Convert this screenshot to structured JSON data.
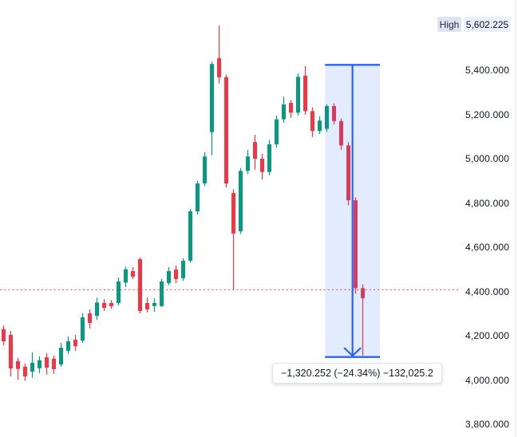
{
  "chart_data": {
    "type": "candlestick",
    "title": "",
    "high_badge": {
      "label": "High",
      "value": "5,602.225"
    },
    "measurement": {
      "display": "−1,320.252 (−24.34%) −132,025.2",
      "change": -1320.252,
      "change_pct": "-24.34%",
      "change_qty": -132025.2,
      "from_price": 5424.252,
      "to_price": 4104.0,
      "from_index": 44.75,
      "to_index": 52.4
    },
    "price_line": {
      "price": 4408,
      "style": "dotted"
    },
    "y_axis": {
      "side": "right",
      "grid": false,
      "ticks": [
        {
          "label": "5,400.000",
          "price": 5400
        },
        {
          "label": "5,200.000",
          "price": 5200
        },
        {
          "label": "5,000.000",
          "price": 5000
        },
        {
          "label": "4,800.000",
          "price": 4800
        },
        {
          "label": "4,600.000",
          "price": 4600
        },
        {
          "label": "4,400.000",
          "price": 4400
        },
        {
          "label": "4,200.000",
          "price": 4200
        },
        {
          "label": "4,000.000",
          "price": 4000
        },
        {
          "label": "3,800.000",
          "price": 3800
        }
      ]
    },
    "colors": {
      "up": "#089981",
      "down": "#f23645",
      "accent": "#2962ff",
      "price_line": "#f23645",
      "region_fill_opacity": 0.13,
      "text": "#131722"
    },
    "candles_ohlc": [
      [
        4230,
        4247,
        4157,
        4175
      ],
      [
        4204,
        4222,
        4016,
        4052
      ],
      [
        4085,
        4100,
        4000,
        4050
      ],
      [
        4060,
        4075,
        3996,
        4016
      ],
      [
        4038,
        4125,
        4010,
        4078
      ],
      [
        4053,
        4107,
        4031,
        4089
      ],
      [
        4103,
        4121,
        4024,
        4056
      ],
      [
        4096,
        4110,
        4028,
        4049
      ],
      [
        4070,
        4168,
        4060,
        4146
      ],
      [
        4132,
        4197,
        4118,
        4175
      ],
      [
        4182,
        4204,
        4132,
        4153
      ],
      [
        4178,
        4301,
        4168,
        4283
      ],
      [
        4301,
        4319,
        4232,
        4258
      ],
      [
        4290,
        4372,
        4272,
        4350
      ],
      [
        4348,
        4366,
        4312,
        4326
      ],
      [
        4348,
        4361,
        4322,
        4333
      ],
      [
        4348,
        4463,
        4337,
        4445
      ],
      [
        4440,
        4512,
        4420,
        4500
      ],
      [
        4492,
        4510,
        4456,
        4467
      ],
      [
        4546,
        4553,
        4301,
        4312
      ],
      [
        4348,
        4373,
        4305,
        4319
      ],
      [
        4334,
        4369,
        4308,
        4348
      ],
      [
        4334,
        4456,
        4330,
        4445
      ],
      [
        4438,
        4510,
        4427,
        4492
      ],
      [
        4499,
        4517,
        4438,
        4456
      ],
      [
        4460,
        4550,
        4448,
        4539
      ],
      [
        4539,
        4772,
        4530,
        4762
      ],
      [
        4762,
        4900,
        4748,
        4888
      ],
      [
        4888,
        5030,
        4876,
        5010
      ],
      [
        5120,
        5438,
        5015,
        5428
      ],
      [
        5454,
        5602.225,
        5340,
        5368
      ],
      [
        5368,
        5380,
        4870,
        4888
      ],
      [
        4845,
        4862,
        4408,
        4662
      ],
      [
        4672,
        4958,
        4660,
        4945
      ],
      [
        4945,
        5040,
        4930,
        5010
      ],
      [
        5075,
        5108,
        4950,
        5000
      ],
      [
        5000,
        5022,
        4905,
        4940
      ],
      [
        4940,
        5085,
        4925,
        5065
      ],
      [
        5065,
        5195,
        5050,
        5178
      ],
      [
        5178,
        5280,
        5162,
        5245
      ],
      [
        5252,
        5265,
        5185,
        5208
      ],
      [
        5208,
        5385,
        5195,
        5370
      ],
      [
        5375,
        5418,
        5198,
        5215
      ],
      [
        5215,
        5232,
        5098,
        5125
      ],
      [
        5125,
        5192,
        5112,
        5172
      ],
      [
        5135,
        5245,
        5122,
        5238
      ],
      [
        5238,
        5250,
        5155,
        5170
      ],
      [
        5170,
        5182,
        5040,
        5060
      ],
      [
        5060,
        5075,
        4790,
        4812
      ],
      [
        4812,
        4826,
        4390,
        4415
      ],
      [
        4415,
        4432,
        4110,
        4370
      ]
    ]
  }
}
